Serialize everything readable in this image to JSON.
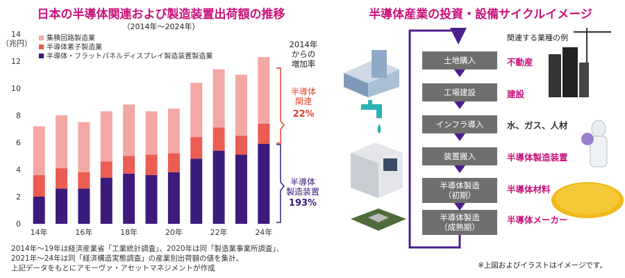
{
  "left_title": "日本の半導体関連および製造装置出荷額の推移",
  "left_subtitle": "（2014年～2024年）",
  "chart_data": {
    "type": "bar",
    "stacked": true,
    "title": "日本の半導体関連および製造装置出荷額の推移",
    "subtitle": "（2014年～2024年）",
    "ylabel": "（兆円）",
    "ylim": [
      0,
      14
    ],
    "yticks": [
      0,
      2,
      4,
      6,
      8,
      10,
      12,
      14
    ],
    "x_tick_labels": [
      "14年",
      "16年",
      "18年",
      "20年",
      "22年",
      "24年"
    ],
    "categories": [
      "2014",
      "2015",
      "2016",
      "2017",
      "2018",
      "2019",
      "2020",
      "2021",
      "2022",
      "2023",
      "2024"
    ],
    "legend_position": "top-left",
    "series": [
      {
        "name": "半導体・フラットパネルディスプレイ製造装置製造業",
        "color": "#3b1a7c",
        "values": [
          2.0,
          2.6,
          2.6,
          3.4,
          3.7,
          3.6,
          3.8,
          4.8,
          5.4,
          5.1,
          5.9
        ]
      },
      {
        "name": "半導体素子製造業",
        "color": "#eb5c52",
        "values": [
          1.6,
          1.5,
          1.2,
          1.2,
          1.3,
          1.5,
          1.4,
          1.6,
          1.7,
          1.4,
          1.5
        ]
      },
      {
        "name": "集積回路製造業",
        "color": "#f3a8a4",
        "values": [
          3.6,
          3.9,
          3.7,
          3.7,
          3.8,
          3.2,
          3.3,
          4.0,
          4.3,
          4.5,
          4.9
        ]
      }
    ],
    "legend_order": [
      "集積回路製造業",
      "半導体素子製造業",
      "半導体・フラットパネルディスプレイ製造装置製造業"
    ]
  },
  "increase": {
    "heading": [
      "2014年",
      "からの",
      "増加率"
    ],
    "related_label": [
      "半導体",
      "関連"
    ],
    "related_value": "22%",
    "equipment_label": [
      "半導体",
      "製造装置"
    ],
    "equipment_value": "193%"
  },
  "notes": [
    "2014年～19年は経済産業省「工業統計調査」、2020年は同「製造業事業所調査」、",
    "2021年～24年は同「経済構造実態調査」の産業別出荷額の値を集計。",
    "上記データをもとにアモーヴァ・アセットマネジメントが作成"
  ],
  "right_title": "半導体産業の投資・設備サイクルイメージ",
  "examples_heading": "関連する業種の例",
  "steps": [
    {
      "label": "土地購入",
      "example": "不動産"
    },
    {
      "label": "工場建設",
      "example": "建設"
    },
    {
      "label": "インフラ導入",
      "example": "水、ガス、人材"
    },
    {
      "label": "装置搬入",
      "example": "半導体製造装置"
    },
    {
      "label": "半導体製造\n（初期）",
      "example": "半導体材料"
    },
    {
      "label": "半導体製造\n（成熟期）",
      "example": "半導体メーカー"
    }
  ],
  "right_note": "※上図およびイラストはイメージです。",
  "colors": {
    "accent": "#c8127a",
    "arrow": "#4b1e8a",
    "step_box": "#6f6f6f"
  }
}
